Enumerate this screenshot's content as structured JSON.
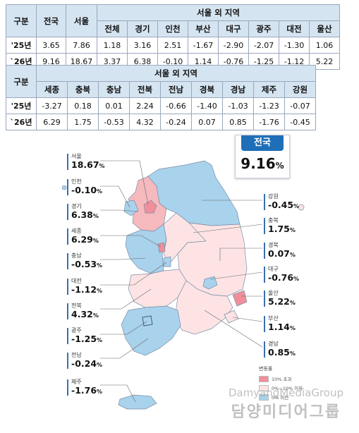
{
  "table1": {
    "col_group": "구분",
    "col_national": "전국",
    "col_seoul": "서울",
    "col_outside": "서울 외 지역",
    "sub_headers": [
      "전체",
      "경기",
      "인천",
      "부산",
      "대구",
      "광주",
      "대전",
      "울산"
    ],
    "rows": [
      {
        "label": "'25년",
        "national": "3.65",
        "seoul": "7.86",
        "values": [
          "1.18",
          "3.16",
          "2.51",
          "-1.67",
          "-2.90",
          "-2.07",
          "-1.30",
          "1.06"
        ]
      },
      {
        "label": "`26년",
        "national": "9.16",
        "seoul": "18.67",
        "values": [
          "3.37",
          "6.38",
          "-0.10",
          "1.14",
          "-0.76",
          "-1.25",
          "-1.12",
          "5.22"
        ]
      }
    ]
  },
  "table2": {
    "col_group": "구분",
    "col_outside": "서울 외 지역",
    "sub_headers": [
      "세종",
      "충북",
      "충남",
      "전북",
      "전남",
      "경북",
      "경남",
      "제주",
      "강원"
    ],
    "rows": [
      {
        "label": "'25년",
        "values": [
          "-3.27",
          "0.18",
          "0.01",
          "2.24",
          "-0.66",
          "-1.40",
          "-1.03",
          "-1.23",
          "-0.07"
        ]
      },
      {
        "label": "`26년",
        "values": [
          "6.29",
          "1.75",
          "-0.53",
          "4.32",
          "-0.24",
          "0.07",
          "0.85",
          "-1.76",
          "-0.45"
        ]
      }
    ]
  },
  "national_box": {
    "title": "전국",
    "value": "9.16",
    "unit": "%"
  },
  "left_labels": [
    {
      "name": "서울",
      "value": "18.67",
      "unit": "%"
    },
    {
      "name": "인천",
      "value": "-0.10",
      "unit": "%"
    },
    {
      "name": "경기",
      "value": "6.38",
      "unit": "%"
    },
    {
      "name": "세종",
      "value": "6.29",
      "unit": "%"
    },
    {
      "name": "충남",
      "value": "-0.53",
      "unit": "%"
    },
    {
      "name": "대전",
      "value": "-1.12",
      "unit": "%"
    },
    {
      "name": "전북",
      "value": "4.32",
      "unit": "%"
    },
    {
      "name": "광주",
      "value": "-1.25",
      "unit": "%"
    },
    {
      "name": "전남",
      "value": "-0.24",
      "unit": "%"
    },
    {
      "name": "제주",
      "value": "-1.76",
      "unit": "%"
    }
  ],
  "right_labels": [
    {
      "name": "강원",
      "value": "-0.45",
      "unit": "%"
    },
    {
      "name": "충북",
      "value": "1.75",
      "unit": "%"
    },
    {
      "name": "경북",
      "value": "0.07",
      "unit": "%"
    },
    {
      "name": "대구",
      "value": "-0.76",
      "unit": "%"
    },
    {
      "name": "울산",
      "value": "5.22",
      "unit": "%"
    },
    {
      "name": "부산",
      "value": "1.14",
      "unit": "%"
    },
    {
      "name": "경남",
      "value": "0.85",
      "unit": "%"
    }
  ],
  "legend": {
    "title": "변동률",
    "items": [
      {
        "label": "10% 초과",
        "color": "#f08f9a"
      },
      {
        "label": "0%~10% 이하",
        "color": "#fde3e4"
      },
      {
        "label": "0% 미만",
        "color": "#a9d2ec"
      }
    ]
  },
  "watermark": {
    "line1": "DamyangMediaGroup",
    "line2": "담양미디어그룹"
  },
  "colors": {
    "header_bg": "#d5e4f1",
    "up_strong": "#f08f9a",
    "up": "#fde3e4",
    "down": "#a9d2ec",
    "badge": "#1f6fb8"
  }
}
